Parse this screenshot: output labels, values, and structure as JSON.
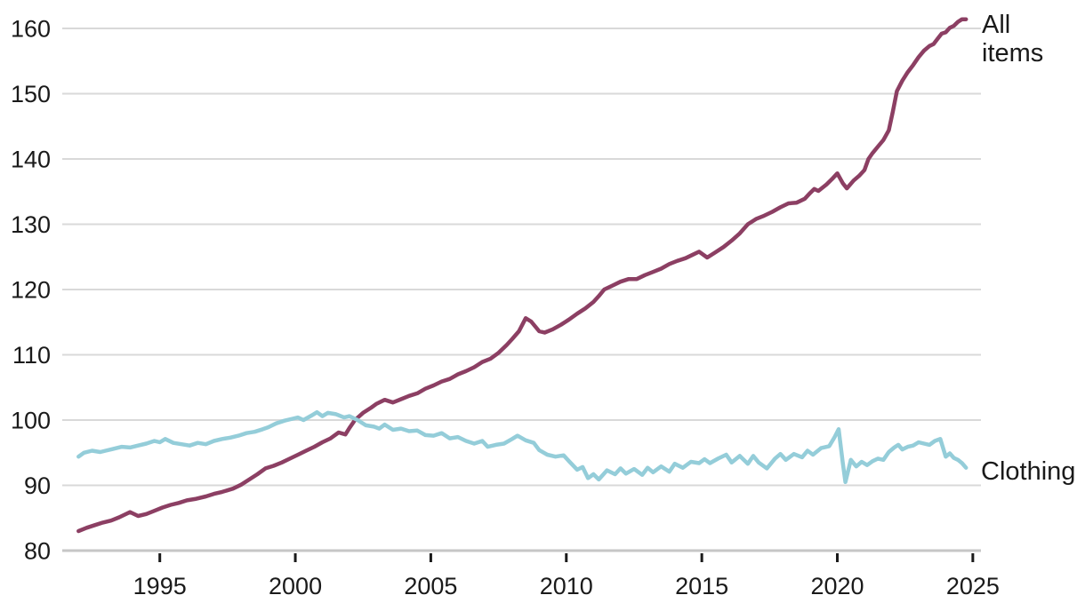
{
  "chart_data": {
    "type": "line",
    "title": "",
    "xlabel": "",
    "ylabel": "",
    "xlim": [
      1991.4,
      2025.3
    ],
    "ylim": [
      80,
      160
    ],
    "x_ticks": [
      1995,
      2000,
      2005,
      2010,
      2015,
      2020,
      2025
    ],
    "y_ticks": [
      80,
      90,
      100,
      110,
      120,
      130,
      140,
      150,
      160
    ],
    "grid": "horizontal",
    "legend_position": "end-of-line-labels-right",
    "colors": {
      "text": "#1a1a1a",
      "gridline": "#d9d9d9",
      "axis_line": "#c6c6c6",
      "tick_mark": "#1a1a1a"
    },
    "series": [
      {
        "name": "All items",
        "color": "#8c3f63",
        "points": [
          [
            1992.0,
            83.0
          ],
          [
            1992.3,
            83.5
          ],
          [
            1992.6,
            83.9
          ],
          [
            1992.9,
            84.3
          ],
          [
            1993.2,
            84.6
          ],
          [
            1993.5,
            85.1
          ],
          [
            1993.9,
            85.9
          ],
          [
            1994.2,
            85.3
          ],
          [
            1994.5,
            85.6
          ],
          [
            1994.8,
            86.1
          ],
          [
            1995.1,
            86.6
          ],
          [
            1995.4,
            87.0
          ],
          [
            1995.7,
            87.3
          ],
          [
            1996.0,
            87.7
          ],
          [
            1996.3,
            87.9
          ],
          [
            1996.7,
            88.3
          ],
          [
            1997.0,
            88.7
          ],
          [
            1997.3,
            89.0
          ],
          [
            1997.7,
            89.5
          ],
          [
            1998.0,
            90.1
          ],
          [
            1998.3,
            90.9
          ],
          [
            1998.6,
            91.7
          ],
          [
            1998.9,
            92.6
          ],
          [
            1999.2,
            93.0
          ],
          [
            1999.5,
            93.5
          ],
          [
            1999.8,
            94.1
          ],
          [
            2000.1,
            94.7
          ],
          [
            2000.4,
            95.3
          ],
          [
            2000.7,
            95.9
          ],
          [
            2001.0,
            96.6
          ],
          [
            2001.3,
            97.2
          ],
          [
            2001.6,
            98.1
          ],
          [
            2001.85,
            97.8
          ],
          [
            2002.0,
            98.8
          ],
          [
            2002.2,
            100.0
          ],
          [
            2002.5,
            101.1
          ],
          [
            2002.8,
            101.9
          ],
          [
            2003.0,
            102.5
          ],
          [
            2003.3,
            103.1
          ],
          [
            2003.6,
            102.7
          ],
          [
            2003.9,
            103.2
          ],
          [
            2004.2,
            103.7
          ],
          [
            2004.5,
            104.1
          ],
          [
            2004.8,
            104.8
          ],
          [
            2005.1,
            105.3
          ],
          [
            2005.4,
            105.9
          ],
          [
            2005.7,
            106.3
          ],
          [
            2006.0,
            107.0
          ],
          [
            2006.3,
            107.5
          ],
          [
            2006.6,
            108.1
          ],
          [
            2006.9,
            108.9
          ],
          [
            2007.2,
            109.4
          ],
          [
            2007.5,
            110.3
          ],
          [
            2007.8,
            111.5
          ],
          [
            2008.0,
            112.4
          ],
          [
            2008.25,
            113.6
          ],
          [
            2008.5,
            115.6
          ],
          [
            2008.7,
            115.1
          ],
          [
            2009.0,
            113.6
          ],
          [
            2009.2,
            113.4
          ],
          [
            2009.5,
            113.9
          ],
          [
            2009.8,
            114.6
          ],
          [
            2010.1,
            115.4
          ],
          [
            2010.4,
            116.3
          ],
          [
            2010.7,
            117.1
          ],
          [
            2011.0,
            118.1
          ],
          [
            2011.2,
            119.0
          ],
          [
            2011.4,
            120.0
          ],
          [
            2011.7,
            120.6
          ],
          [
            2012.0,
            121.2
          ],
          [
            2012.3,
            121.6
          ],
          [
            2012.6,
            121.6
          ],
          [
            2012.9,
            122.2
          ],
          [
            2013.2,
            122.7
          ],
          [
            2013.5,
            123.2
          ],
          [
            2013.8,
            123.9
          ],
          [
            2014.1,
            124.4
          ],
          [
            2014.4,
            124.8
          ],
          [
            2014.7,
            125.4
          ],
          [
            2014.9,
            125.8
          ],
          [
            2015.2,
            124.9
          ],
          [
            2015.5,
            125.7
          ],
          [
            2015.8,
            126.5
          ],
          [
            2016.1,
            127.5
          ],
          [
            2016.4,
            128.6
          ],
          [
            2016.7,
            130.0
          ],
          [
            2017.0,
            130.8
          ],
          [
            2017.3,
            131.3
          ],
          [
            2017.6,
            131.9
          ],
          [
            2017.9,
            132.6
          ],
          [
            2018.2,
            133.2
          ],
          [
            2018.5,
            133.3
          ],
          [
            2018.8,
            133.9
          ],
          [
            2019.0,
            134.8
          ],
          [
            2019.15,
            135.4
          ],
          [
            2019.3,
            135.1
          ],
          [
            2019.6,
            136.1
          ],
          [
            2019.8,
            136.9
          ],
          [
            2020.0,
            137.8
          ],
          [
            2020.2,
            136.3
          ],
          [
            2020.35,
            135.5
          ],
          [
            2020.6,
            136.7
          ],
          [
            2020.8,
            137.4
          ],
          [
            2021.0,
            138.3
          ],
          [
            2021.15,
            140.0
          ],
          [
            2021.3,
            140.9
          ],
          [
            2021.5,
            141.9
          ],
          [
            2021.7,
            142.9
          ],
          [
            2021.9,
            144.4
          ],
          [
            2022.05,
            147.3
          ],
          [
            2022.2,
            150.4
          ],
          [
            2022.4,
            152.0
          ],
          [
            2022.6,
            153.3
          ],
          [
            2022.8,
            154.4
          ],
          [
            2023.0,
            155.6
          ],
          [
            2023.2,
            156.6
          ],
          [
            2023.4,
            157.3
          ],
          [
            2023.55,
            157.6
          ],
          [
            2023.7,
            158.4
          ],
          [
            2023.85,
            159.2
          ],
          [
            2024.0,
            159.4
          ],
          [
            2024.15,
            160.1
          ],
          [
            2024.3,
            160.4
          ],
          [
            2024.45,
            161.0
          ],
          [
            2024.6,
            161.4
          ],
          [
            2024.75,
            161.4
          ]
        ]
      },
      {
        "name": "Clothing",
        "color": "#94cdd9",
        "points": [
          [
            1992.0,
            94.4
          ],
          [
            1992.2,
            95.0
          ],
          [
            1992.5,
            95.3
          ],
          [
            1992.8,
            95.1
          ],
          [
            1993.0,
            95.3
          ],
          [
            1993.3,
            95.6
          ],
          [
            1993.6,
            95.9
          ],
          [
            1993.9,
            95.8
          ],
          [
            1994.2,
            96.1
          ],
          [
            1994.5,
            96.4
          ],
          [
            1994.8,
            96.8
          ],
          [
            1995.0,
            96.6
          ],
          [
            1995.2,
            97.1
          ],
          [
            1995.5,
            96.5
          ],
          [
            1995.8,
            96.3
          ],
          [
            1996.1,
            96.1
          ],
          [
            1996.4,
            96.5
          ],
          [
            1996.7,
            96.3
          ],
          [
            1997.0,
            96.8
          ],
          [
            1997.3,
            97.1
          ],
          [
            1997.6,
            97.3
          ],
          [
            1997.9,
            97.6
          ],
          [
            1998.2,
            98.0
          ],
          [
            1998.5,
            98.2
          ],
          [
            1998.8,
            98.6
          ],
          [
            1999.0,
            98.9
          ],
          [
            1999.3,
            99.5
          ],
          [
            1999.6,
            99.9
          ],
          [
            1999.9,
            100.2
          ],
          [
            2000.1,
            100.4
          ],
          [
            2000.3,
            100.0
          ],
          [
            2000.6,
            100.7
          ],
          [
            2000.8,
            101.2
          ],
          [
            2001.0,
            100.6
          ],
          [
            2001.2,
            101.1
          ],
          [
            2001.5,
            100.9
          ],
          [
            2001.8,
            100.4
          ],
          [
            2002.0,
            100.6
          ],
          [
            2002.3,
            100.0
          ],
          [
            2002.6,
            99.2
          ],
          [
            2002.9,
            99.0
          ],
          [
            2003.1,
            98.7
          ],
          [
            2003.3,
            99.3
          ],
          [
            2003.6,
            98.5
          ],
          [
            2003.9,
            98.7
          ],
          [
            2004.2,
            98.3
          ],
          [
            2004.5,
            98.4
          ],
          [
            2004.8,
            97.7
          ],
          [
            2005.1,
            97.6
          ],
          [
            2005.4,
            98.0
          ],
          [
            2005.7,
            97.2
          ],
          [
            2006.0,
            97.4
          ],
          [
            2006.3,
            96.8
          ],
          [
            2006.6,
            96.4
          ],
          [
            2006.9,
            96.8
          ],
          [
            2007.1,
            95.9
          ],
          [
            2007.4,
            96.2
          ],
          [
            2007.7,
            96.4
          ],
          [
            2008.0,
            97.1
          ],
          [
            2008.2,
            97.6
          ],
          [
            2008.5,
            96.9
          ],
          [
            2008.8,
            96.5
          ],
          [
            2009.0,
            95.4
          ],
          [
            2009.3,
            94.7
          ],
          [
            2009.6,
            94.4
          ],
          [
            2009.9,
            94.6
          ],
          [
            2010.1,
            93.7
          ],
          [
            2010.4,
            92.4
          ],
          [
            2010.6,
            92.8
          ],
          [
            2010.8,
            91.1
          ],
          [
            2011.0,
            91.7
          ],
          [
            2011.2,
            90.9
          ],
          [
            2011.5,
            92.3
          ],
          [
            2011.8,
            91.7
          ],
          [
            2012.0,
            92.6
          ],
          [
            2012.2,
            91.8
          ],
          [
            2012.5,
            92.5
          ],
          [
            2012.8,
            91.6
          ],
          [
            2013.0,
            92.7
          ],
          [
            2013.2,
            92.0
          ],
          [
            2013.5,
            92.9
          ],
          [
            2013.8,
            92.1
          ],
          [
            2014.0,
            93.3
          ],
          [
            2014.3,
            92.7
          ],
          [
            2014.6,
            93.6
          ],
          [
            2014.9,
            93.4
          ],
          [
            2015.1,
            94.0
          ],
          [
            2015.3,
            93.4
          ],
          [
            2015.6,
            94.1
          ],
          [
            2015.9,
            94.7
          ],
          [
            2016.1,
            93.5
          ],
          [
            2016.4,
            94.5
          ],
          [
            2016.7,
            93.3
          ],
          [
            2016.9,
            94.5
          ],
          [
            2017.1,
            93.5
          ],
          [
            2017.4,
            92.6
          ],
          [
            2017.7,
            94.1
          ],
          [
            2017.9,
            94.8
          ],
          [
            2018.1,
            93.9
          ],
          [
            2018.4,
            94.8
          ],
          [
            2018.7,
            94.3
          ],
          [
            2018.9,
            95.3
          ],
          [
            2019.1,
            94.7
          ],
          [
            2019.4,
            95.7
          ],
          [
            2019.7,
            96.0
          ],
          [
            2019.9,
            97.4
          ],
          [
            2020.05,
            98.6
          ],
          [
            2020.2,
            93.5
          ],
          [
            2020.3,
            90.5
          ],
          [
            2020.5,
            93.9
          ],
          [
            2020.7,
            92.9
          ],
          [
            2020.9,
            93.6
          ],
          [
            2021.1,
            93.1
          ],
          [
            2021.3,
            93.7
          ],
          [
            2021.5,
            94.1
          ],
          [
            2021.7,
            93.9
          ],
          [
            2021.9,
            95.1
          ],
          [
            2022.1,
            95.8
          ],
          [
            2022.25,
            96.2
          ],
          [
            2022.4,
            95.5
          ],
          [
            2022.6,
            95.9
          ],
          [
            2022.8,
            96.1
          ],
          [
            2023.0,
            96.6
          ],
          [
            2023.2,
            96.4
          ],
          [
            2023.4,
            96.2
          ],
          [
            2023.6,
            96.8
          ],
          [
            2023.8,
            97.1
          ],
          [
            2024.0,
            94.4
          ],
          [
            2024.15,
            94.9
          ],
          [
            2024.3,
            94.2
          ],
          [
            2024.45,
            93.9
          ],
          [
            2024.6,
            93.4
          ],
          [
            2024.75,
            92.7
          ]
        ]
      }
    ]
  }
}
